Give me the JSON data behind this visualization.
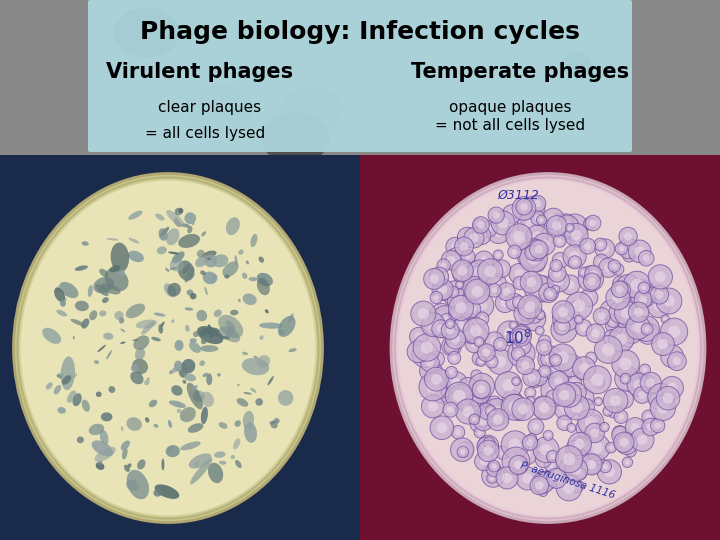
{
  "title": "Phage biology: Infection cycles",
  "left_heading": "Virulent phages",
  "right_heading": "Temperate phages",
  "left_line1": "clear plaques",
  "left_line2": "= all cells lysed",
  "right_line1": "opaque plaques",
  "right_line2": "= not all cells lysed",
  "header_box_color": "#aed8e0",
  "bg_color": "#909090",
  "left_plate_bg": "#1a2a4a",
  "right_plate_bg": "#6e1030",
  "left_agar_color": "#e8e4b8",
  "right_agar_color": "#ead4d8",
  "left_rim_color": "#c8c090",
  "right_rim_color": "#d4b8c0",
  "left_plaque_color": "#7a9090",
  "right_plaque_color_fill": "#d0b8d8",
  "right_plaque_color_edge": "#8060a0",
  "title_fontsize": 18,
  "heading_fontsize": 15,
  "body_fontsize": 11,
  "annotation_color": "#3030a0"
}
